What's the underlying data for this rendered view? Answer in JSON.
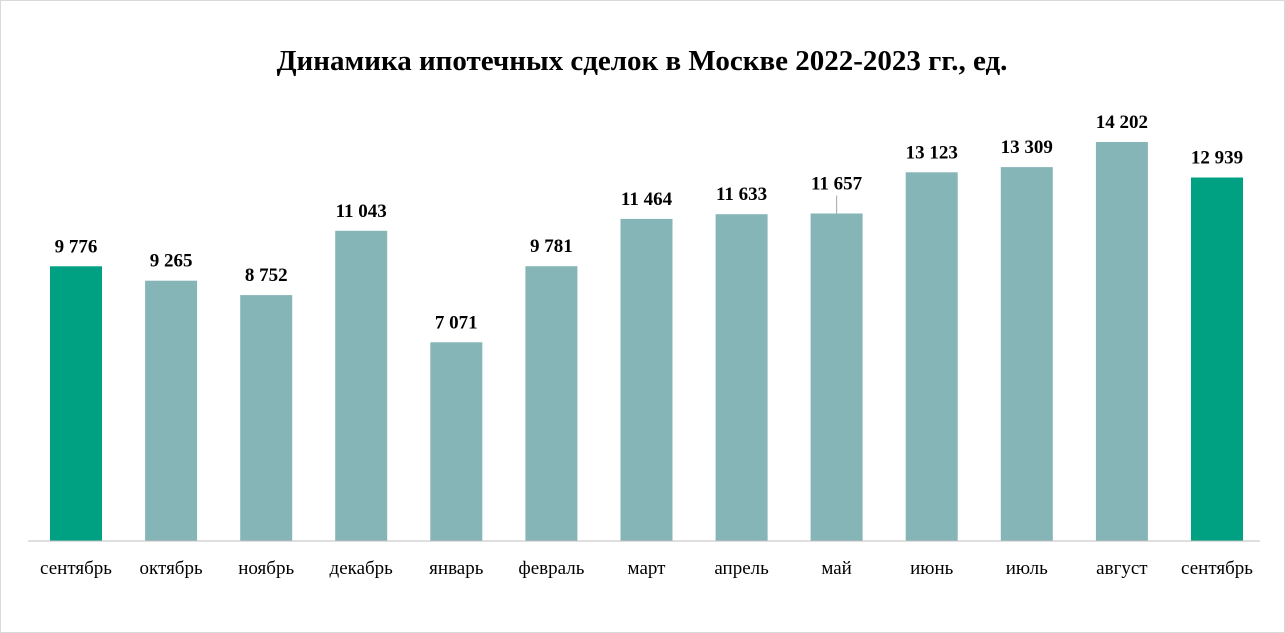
{
  "chart_data": {
    "type": "bar",
    "title": "Динамика ипотечных сделок в Москве 2022-2023 гг., ед.",
    "xlabel": "",
    "ylabel": "",
    "grid": false,
    "ylim": [
      0,
      15000
    ],
    "categories": [
      "сентябрь",
      "октябрь",
      "ноябрь",
      "декабрь",
      "январь",
      "февраль",
      "март",
      "апрель",
      "май",
      "июнь",
      "июль",
      "август",
      "сентябрь"
    ],
    "values": [
      9776,
      9265,
      8752,
      11043,
      7071,
      9781,
      11464,
      11633,
      11657,
      13123,
      13309,
      14202,
      12939
    ],
    "value_labels": [
      "9 776",
      "9 265",
      "8 752",
      "11 043",
      "7 071",
      "9 781",
      "11 464",
      "11 633",
      "11 657",
      "13 123",
      "13 309",
      "14 202",
      "12 939"
    ],
    "highlighted": [
      0,
      12
    ],
    "colors": {
      "bar": "#86b5b8",
      "highlight": "#00a083",
      "axis": "#bfbfbf",
      "text": "#000000"
    }
  }
}
